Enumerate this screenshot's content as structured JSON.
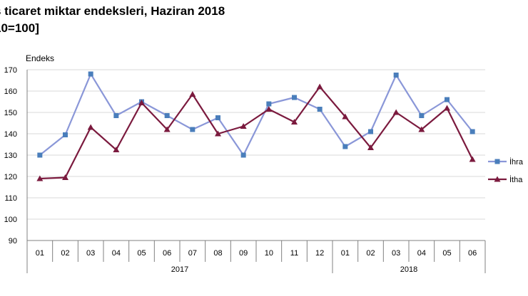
{
  "title": {
    "line1": "s ticaret miktar endeksleri, Haziran 2018",
    "line2": "10=100]"
  },
  "chart_data": {
    "type": "line",
    "ylabel": "Endeks",
    "ylim": [
      90,
      170
    ],
    "yticks": [
      90,
      100,
      110,
      120,
      130,
      140,
      150,
      160,
      170
    ],
    "categories": [
      "01",
      "02",
      "03",
      "04",
      "05",
      "06",
      "07",
      "08",
      "09",
      "10",
      "11",
      "12",
      "01",
      "02",
      "03",
      "04",
      "05",
      "06"
    ],
    "groups": [
      {
        "label": "2017",
        "count": 12
      },
      {
        "label": "2018",
        "count": 6
      }
    ],
    "series": [
      {
        "name": "İhra",
        "color": "#8a97d8",
        "marker": "square",
        "values": [
          130,
          139.5,
          168,
          148.5,
          155,
          148.5,
          142,
          147.5,
          130,
          154,
          157,
          151.5,
          134,
          141,
          167.5,
          148.5,
          156,
          141
        ]
      },
      {
        "name": "İtha",
        "color": "#7b1a3e",
        "marker": "triangle",
        "values": [
          119,
          119.5,
          143,
          132.5,
          154.5,
          142,
          158.5,
          140,
          143.5,
          151.5,
          145.5,
          162,
          148,
          133.5,
          150,
          142,
          152,
          128
        ]
      }
    ]
  },
  "colors": {
    "axis": "#808080",
    "grid": "#d9d9d9",
    "marker_ihra": "#4a7ebb"
  }
}
